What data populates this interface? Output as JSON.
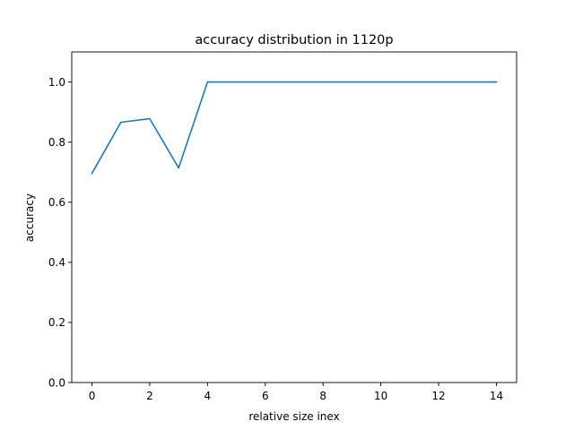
{
  "chart_data": {
    "type": "line",
    "title": "accuracy distribution in 1120p",
    "xlabel": "relative size inex",
    "ylabel": "accuracy",
    "xlim": [
      -0.7,
      14.7
    ],
    "ylim": [
      0.0,
      1.1
    ],
    "x_ticks": [
      0,
      2,
      4,
      6,
      8,
      10,
      12,
      14
    ],
    "y_ticks": [
      0.0,
      0.2,
      0.4,
      0.6,
      0.8,
      1.0
    ],
    "x_tick_labels": [
      "0",
      "2",
      "4",
      "6",
      "8",
      "10",
      "12",
      "14"
    ],
    "y_tick_labels": [
      "0.0",
      "0.2",
      "0.4",
      "0.6",
      "0.8",
      "1.0"
    ],
    "grid": false,
    "series": [
      {
        "color": "#1f77b4",
        "x": [
          0,
          1,
          2,
          3,
          4,
          5,
          6,
          7,
          8,
          9,
          10,
          11,
          12,
          13,
          14
        ],
        "y": [
          0.696,
          0.866,
          0.878,
          0.714,
          1.0,
          1.0,
          1.0,
          1.0,
          1.0,
          1.0,
          1.0,
          1.0,
          1.0,
          1.0,
          1.0
        ]
      }
    ]
  }
}
